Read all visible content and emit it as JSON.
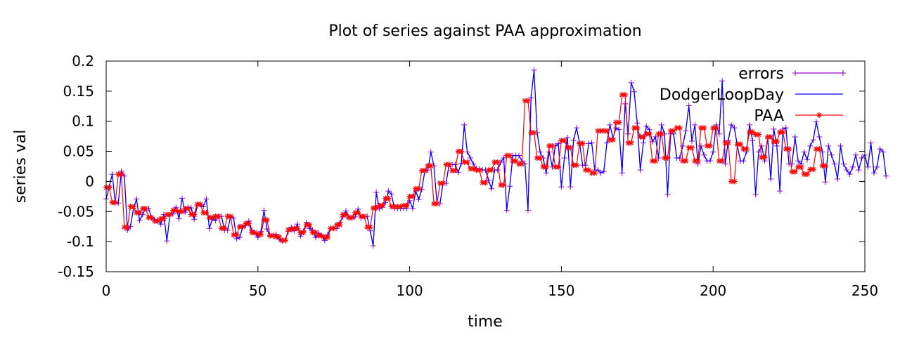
{
  "chart_data": {
    "type": "line",
    "title": "Plot of series against PAA approximation",
    "xlabel": "time",
    "ylabel": "series val",
    "xlim": [
      0,
      250
    ],
    "ylim": [
      -0.15,
      0.2
    ],
    "x_ticks": [
      0,
      50,
      100,
      150,
      200,
      250
    ],
    "y_ticks": [
      -0.15,
      -0.1,
      -0.05,
      0,
      0.05,
      0.1,
      0.15,
      0.2
    ],
    "x_tick_labels": [
      "0",
      "50",
      "100",
      "150",
      "200",
      "250"
    ],
    "y_tick_labels": [
      "-0.15",
      "-0.1",
      "-0.05",
      "0",
      "0.05",
      "0.1",
      "0.15",
      "0.2"
    ],
    "grid": false,
    "legend_position": "top-right",
    "series": [
      {
        "name": "errors",
        "style": "line-plus",
        "color": "#9400d3",
        "values": [
          -0.029,
          -0.009,
          0.012,
          -0.036,
          -0.036,
          0.017,
          0.009,
          -0.081,
          -0.075,
          -0.045,
          -0.029,
          -0.065,
          -0.055,
          -0.045,
          -0.045,
          -0.061,
          -0.063,
          -0.064,
          -0.071,
          -0.055,
          -0.099,
          -0.056,
          -0.054,
          -0.043,
          -0.062,
          -0.028,
          -0.051,
          -0.043,
          -0.044,
          -0.063,
          -0.041,
          -0.038,
          -0.042,
          -0.029,
          -0.078,
          -0.062,
          -0.065,
          -0.058,
          -0.058,
          -0.081,
          -0.081,
          -0.058,
          -0.061,
          -0.095,
          -0.093,
          -0.076,
          -0.073,
          -0.066,
          -0.081,
          -0.086,
          -0.093,
          -0.083,
          -0.048,
          -0.079,
          -0.091,
          -0.091,
          -0.088,
          -0.096,
          -0.099,
          -0.098,
          -0.083,
          -0.076,
          -0.082,
          -0.071,
          -0.091,
          -0.083,
          -0.068,
          -0.078,
          -0.081,
          -0.093,
          -0.086,
          -0.091,
          -0.098,
          -0.088,
          -0.078,
          -0.078,
          -0.078,
          -0.068,
          -0.059,
          -0.049,
          -0.061,
          -0.061,
          -0.059,
          -0.046,
          -0.061,
          -0.058,
          -0.058,
          -0.082,
          -0.107,
          -0.018,
          -0.045,
          -0.043,
          -0.035,
          -0.016,
          -0.021,
          -0.045,
          -0.045,
          -0.045,
          -0.045,
          -0.045,
          -0.032,
          -0.045,
          -0.016,
          -0.03,
          -0.013,
          0.017,
          0.019,
          0.049,
          0.026,
          -0.037,
          -0.037,
          -0.003,
          -0.003,
          0.028,
          0.028,
          0.028,
          0.015,
          0.03,
          0.094,
          0.049,
          0.039,
          0.029,
          0.021,
          0.021,
          0.019,
          0.019,
          0.002,
          -0.012,
          0.019,
          0.019,
          0.032,
          0.039,
          -0.048,
          -0.008,
          0.043,
          0.043,
          0.043,
          0.034,
          0.029,
          -0.048,
          0.139,
          0.185,
          0.081,
          0.049,
          0.039,
          0.014,
          0.049,
          0.024,
          0.059,
          0.063,
          -0.009,
          0.039,
          0.073,
          -0.009,
          0.068,
          0.089,
          0.064,
          0.027,
          0.027,
          0.063,
          0.064,
          0.019,
          0.019,
          0.014,
          0.017,
          0.064,
          0.094,
          0.072,
          0.089,
          0.086,
          0.014,
          0.129,
          0.079,
          0.164,
          0.149,
          0.097,
          0.019,
          0.064,
          0.092,
          0.086,
          0.066,
          0.074,
          0.039,
          0.094,
          0.079,
          -0.022,
          0.079,
          0.079,
          0.039,
          0.039,
          0.059,
          0.084,
          0.126,
          0.067,
          0.094,
          0.029,
          0.059,
          0.044,
          0.034,
          0.034,
          0.049,
          0.094,
          0.079,
          0.167,
          0.029,
          0.068,
          0.094,
          0.089,
          0.059,
          0.034,
          0.034,
          0.049,
          0.094,
          0.068,
          -0.022,
          0.049,
          0.059,
          0.034,
          0.072,
          0.004,
          0.087,
          0.059,
          -0.016,
          0.087,
          0.089,
          0.029,
          0.029,
          0.074,
          0.034,
          0.029,
          0.049,
          0.036,
          0.059,
          0.069,
          0.099,
          0.074,
          0.049,
          -0.001,
          0.059,
          0.044,
          0.029,
          0.004,
          0.059,
          0.029,
          0.019,
          0.012,
          0.024,
          0.044,
          0.019,
          0.039,
          0.044,
          0.024,
          0.064,
          0.014,
          0.024,
          0.054,
          0.049,
          0.009
        ]
      },
      {
        "name": "DodgerLoopDay",
        "style": "line",
        "color": "#0000ff",
        "values": [
          -0.029,
          -0.009,
          0.012,
          -0.036,
          -0.036,
          0.017,
          0.009,
          -0.081,
          -0.075,
          -0.045,
          -0.029,
          -0.065,
          -0.055,
          -0.045,
          -0.045,
          -0.061,
          -0.063,
          -0.064,
          -0.071,
          -0.055,
          -0.099,
          -0.056,
          -0.054,
          -0.043,
          -0.062,
          -0.028,
          -0.051,
          -0.043,
          -0.044,
          -0.063,
          -0.041,
          -0.038,
          -0.042,
          -0.029,
          -0.078,
          -0.062,
          -0.065,
          -0.058,
          -0.058,
          -0.081,
          -0.081,
          -0.058,
          -0.061,
          -0.095,
          -0.093,
          -0.076,
          -0.073,
          -0.066,
          -0.081,
          -0.086,
          -0.093,
          -0.083,
          -0.048,
          -0.079,
          -0.091,
          -0.091,
          -0.088,
          -0.096,
          -0.099,
          -0.098,
          -0.083,
          -0.076,
          -0.082,
          -0.071,
          -0.091,
          -0.083,
          -0.068,
          -0.078,
          -0.081,
          -0.093,
          -0.086,
          -0.091,
          -0.098,
          -0.088,
          -0.078,
          -0.078,
          -0.078,
          -0.068,
          -0.059,
          -0.049,
          -0.061,
          -0.061,
          -0.059,
          -0.046,
          -0.061,
          -0.058,
          -0.058,
          -0.082,
          -0.107,
          -0.018,
          -0.045,
          -0.043,
          -0.035,
          -0.016,
          -0.021,
          -0.045,
          -0.045,
          -0.045,
          -0.045,
          -0.045,
          -0.032,
          -0.045,
          -0.016,
          -0.03,
          -0.013,
          0.017,
          0.019,
          0.049,
          0.026,
          -0.037,
          -0.037,
          -0.003,
          -0.003,
          0.028,
          0.028,
          0.028,
          0.015,
          0.03,
          0.094,
          0.049,
          0.039,
          0.029,
          0.021,
          0.021,
          0.019,
          0.019,
          0.002,
          -0.012,
          0.019,
          0.019,
          0.032,
          0.039,
          -0.048,
          -0.008,
          0.043,
          0.043,
          0.043,
          0.034,
          0.029,
          -0.048,
          0.139,
          0.185,
          0.081,
          0.049,
          0.039,
          0.014,
          0.049,
          0.024,
          0.059,
          0.063,
          -0.009,
          0.039,
          0.073,
          -0.009,
          0.068,
          0.089,
          0.064,
          0.027,
          0.027,
          0.063,
          0.064,
          0.019,
          0.019,
          0.014,
          0.017,
          0.064,
          0.094,
          0.072,
          0.089,
          0.086,
          0.014,
          0.129,
          0.079,
          0.164,
          0.149,
          0.097,
          0.019,
          0.064,
          0.092,
          0.086,
          0.066,
          0.074,
          0.039,
          0.094,
          0.079,
          -0.022,
          0.079,
          0.079,
          0.039,
          0.039,
          0.059,
          0.084,
          0.126,
          0.067,
          0.094,
          0.029,
          0.059,
          0.044,
          0.034,
          0.034,
          0.049,
          0.094,
          0.079,
          0.167,
          0.029,
          0.068,
          0.094,
          0.089,
          0.059,
          0.034,
          0.034,
          0.049,
          0.094,
          0.068,
          -0.022,
          0.049,
          0.059,
          0.034,
          0.072,
          0.004,
          0.087,
          0.059,
          -0.016,
          0.087,
          0.089,
          0.029,
          0.029,
          0.074,
          0.034,
          0.029,
          0.049,
          0.036,
          0.059,
          0.069,
          0.099,
          0.074,
          0.049,
          -0.001,
          0.059,
          0.044,
          0.029,
          0.004,
          0.059,
          0.029,
          0.019,
          0.012,
          0.024,
          0.044,
          0.019,
          0.039,
          0.044,
          0.024,
          0.064,
          0.014,
          0.024,
          0.054,
          0.049,
          0.009
        ]
      },
      {
        "name": "PAA",
        "style": "line-star",
        "color": "#ff0000",
        "values": [
          -0.01,
          -0.01,
          -0.035,
          -0.035,
          0.012,
          0.012,
          -0.076,
          -0.076,
          -0.042,
          -0.042,
          -0.052,
          -0.052,
          -0.045,
          -0.045,
          -0.06,
          -0.06,
          -0.066,
          -0.066,
          -0.062,
          -0.062,
          -0.055,
          -0.055,
          -0.048,
          -0.048,
          -0.05,
          -0.05,
          -0.045,
          -0.045,
          -0.055,
          -0.055,
          -0.038,
          -0.038,
          -0.052,
          -0.052,
          -0.06,
          -0.06,
          -0.058,
          -0.058,
          -0.078,
          -0.078,
          -0.058,
          -0.058,
          -0.089,
          -0.089,
          -0.075,
          -0.075,
          -0.07,
          -0.07,
          -0.085,
          -0.085,
          -0.088,
          -0.088,
          -0.064,
          -0.064,
          -0.09,
          -0.09,
          -0.092,
          -0.092,
          -0.098,
          -0.098,
          -0.08,
          -0.08,
          -0.078,
          -0.078,
          -0.085,
          -0.085,
          -0.072,
          -0.072,
          -0.085,
          -0.085,
          -0.09,
          -0.09,
          -0.093,
          -0.093,
          -0.078,
          -0.078,
          -0.072,
          -0.072,
          -0.055,
          -0.055,
          -0.06,
          -0.06,
          -0.052,
          -0.052,
          -0.058,
          -0.058,
          -0.076,
          -0.076,
          -0.044,
          -0.044,
          -0.04,
          -0.04,
          -0.028,
          -0.028,
          -0.042,
          -0.042,
          -0.042,
          -0.042,
          -0.04,
          -0.04,
          -0.025,
          -0.025,
          -0.012,
          -0.012,
          0.018,
          0.018,
          0.026,
          0.026,
          -0.037,
          -0.037,
          -0.003,
          -0.003,
          0.028,
          0.028,
          0.018,
          0.018,
          0.05,
          0.05,
          0.032,
          0.032,
          0.021,
          0.021,
          0.019,
          0.019,
          -0.002,
          -0.002,
          0.019,
          0.019,
          0.032,
          0.032,
          -0.006,
          -0.006,
          0.043,
          0.043,
          0.034,
          0.034,
          0.029,
          0.029,
          0.134,
          0.134,
          0.081,
          0.081,
          0.039,
          0.039,
          0.024,
          0.024,
          0.059,
          0.059,
          0.024,
          0.024,
          0.068,
          0.068,
          0.056,
          0.056,
          0.027,
          0.027,
          0.063,
          0.063,
          0.019,
          0.019,
          0.014,
          0.014,
          0.084,
          0.084,
          0.084,
          0.084,
          0.069,
          0.069,
          0.098,
          0.098,
          0.144,
          0.144,
          0.064,
          0.064,
          0.089,
          0.089,
          0.074,
          0.074,
          0.079,
          0.079,
          0.034,
          0.034,
          0.079,
          0.079,
          0.039,
          0.039,
          0.084,
          0.084,
          0.089,
          0.089,
          0.034,
          0.034,
          0.056,
          0.056,
          0.034,
          0.034,
          0.089,
          0.089,
          0.059,
          0.059,
          0.089,
          0.089,
          0.034,
          0.034,
          0.064,
          0.064,
          0.0,
          0.0,
          0.062,
          0.062,
          0.054,
          0.054,
          0.082,
          0.082,
          0.078,
          0.078,
          0.04,
          0.04,
          0.074,
          0.074,
          0.066,
          0.066,
          0.082,
          0.082,
          0.054,
          0.054,
          0.016,
          0.016,
          0.024,
          0.024,
          0.012,
          0.012,
          0.02,
          0.02,
          0.054,
          0.054,
          0.026,
          0.026
        ]
      }
    ]
  }
}
